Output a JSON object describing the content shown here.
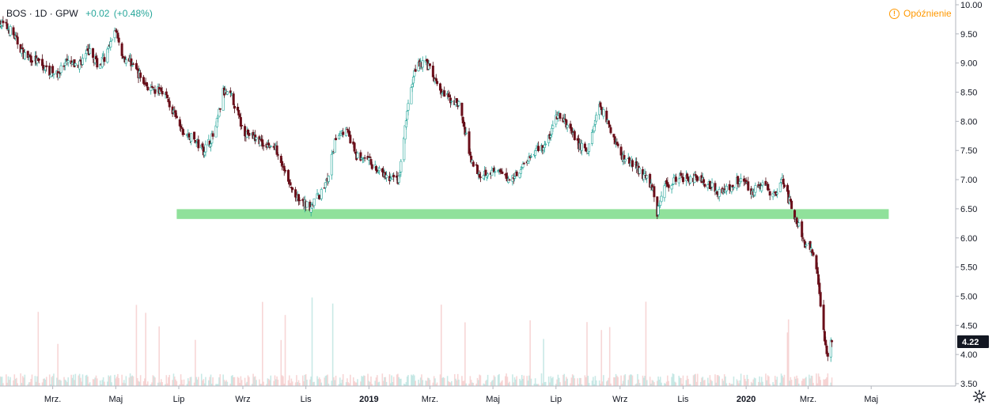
{
  "header": {
    "symbol": "BOS",
    "interval": "1D",
    "exchange": "GPW",
    "change": "+0.02",
    "change_pct": "(+0.48%)"
  },
  "status": {
    "label": "Opóźnienie",
    "icon": "warning-icon"
  },
  "last_price_label": "4.22",
  "colors": {
    "up": "#26a69a",
    "down": "#6b0f1a",
    "zone": "#7ddc8a",
    "last_price_bg": "#131722"
  },
  "icons": {
    "settings": "gear-icon"
  },
  "chart_data": {
    "type": "candlestick",
    "title": "",
    "xlabel": "",
    "ylabel": "",
    "ylim": [
      3.5,
      10.0
    ],
    "y_ticks": [
      "10.00",
      "9.50",
      "9.00",
      "8.50",
      "8.00",
      "7.50",
      "7.00",
      "6.50",
      "6.00",
      "5.50",
      "5.00",
      "4.50",
      "4.00",
      "3.50"
    ],
    "x_ticks": [
      "Mrz.",
      "Maj",
      "Lip",
      "Wrz",
      "Lis",
      "2019",
      "Mrz.",
      "Maj",
      "Lip",
      "Wrz",
      "Lis",
      "2020",
      "Mrz.",
      "Maj"
    ],
    "x_tick_dates": [
      "2018-03-01",
      "2018-05-01",
      "2018-07-01",
      "2018-09-01",
      "2018-11-01",
      "2019-01-01",
      "2019-03-01",
      "2019-05-01",
      "2019-07-01",
      "2019-09-01",
      "2019-11-01",
      "2020-01-01",
      "2020-03-01",
      "2020-05-01"
    ],
    "x_range": [
      "2018-01-09",
      "2020-06-15"
    ],
    "grid": false,
    "last_price": 4.22,
    "support_zone": {
      "low": 6.42,
      "high": 6.48,
      "from": "2018-06-29",
      "to": "2020-05-18"
    },
    "close_path": [
      [
        "2018-01-09",
        9.7
      ],
      [
        "2018-01-20",
        9.55
      ],
      [
        "2018-02-01",
        9.15
      ],
      [
        "2018-02-12",
        9.05
      ],
      [
        "2018-02-22",
        8.9
      ],
      [
        "2018-03-05",
        8.8
      ],
      [
        "2018-03-15",
        9.0
      ],
      [
        "2018-03-25",
        8.95
      ],
      [
        "2018-04-05",
        9.2
      ],
      [
        "2018-04-15",
        8.95
      ],
      [
        "2018-04-25",
        9.25
      ],
      [
        "2018-05-01",
        9.6
      ],
      [
        "2018-05-08",
        9.1
      ],
      [
        "2018-05-17",
        9.0
      ],
      [
        "2018-05-27",
        8.7
      ],
      [
        "2018-06-06",
        8.5
      ],
      [
        "2018-06-16",
        8.55
      ],
      [
        "2018-06-24",
        8.2
      ],
      [
        "2018-07-05",
        7.8
      ],
      [
        "2018-07-15",
        7.7
      ],
      [
        "2018-07-25",
        7.5
      ],
      [
        "2018-08-05",
        7.8
      ],
      [
        "2018-08-13",
        8.5
      ],
      [
        "2018-08-22",
        8.4
      ],
      [
        "2018-09-01",
        7.85
      ],
      [
        "2018-09-13",
        7.7
      ],
      [
        "2018-09-25",
        7.6
      ],
      [
        "2018-10-05",
        7.5
      ],
      [
        "2018-10-16",
        6.9
      ],
      [
        "2018-10-26",
        6.6
      ],
      [
        "2018-11-05",
        6.55
      ],
      [
        "2018-11-15",
        6.75
      ],
      [
        "2018-11-22",
        7.0
      ],
      [
        "2018-12-01",
        7.8
      ],
      [
        "2018-12-10",
        7.85
      ],
      [
        "2018-12-20",
        7.4
      ],
      [
        "2019-01-02",
        7.3
      ],
      [
        "2019-01-12",
        7.1
      ],
      [
        "2019-01-22",
        7.0
      ],
      [
        "2019-01-30",
        7.0
      ],
      [
        "2019-02-08",
        8.3
      ],
      [
        "2019-02-16",
        9.0
      ],
      [
        "2019-02-26",
        9.0
      ],
      [
        "2019-03-08",
        8.6
      ],
      [
        "2019-03-18",
        8.4
      ],
      [
        "2019-03-29",
        8.3
      ],
      [
        "2019-04-09",
        7.4
      ],
      [
        "2019-04-18",
        7.1
      ],
      [
        "2019-04-28",
        7.15
      ],
      [
        "2019-05-08",
        7.1
      ],
      [
        "2019-05-18",
        7.0
      ],
      [
        "2019-05-28",
        7.2
      ],
      [
        "2019-06-10",
        7.5
      ],
      [
        "2019-06-22",
        7.6
      ],
      [
        "2019-07-02",
        8.1
      ],
      [
        "2019-07-12",
        7.95
      ],
      [
        "2019-07-22",
        7.6
      ],
      [
        "2019-08-01",
        7.5
      ],
      [
        "2019-08-12",
        8.3
      ],
      [
        "2019-08-22",
        7.9
      ],
      [
        "2019-09-02",
        7.4
      ],
      [
        "2019-09-12",
        7.3
      ],
      [
        "2019-09-22",
        7.1
      ],
      [
        "2019-10-02",
        6.9
      ],
      [
        "2019-10-07",
        6.45
      ],
      [
        "2019-10-14",
        6.9
      ],
      [
        "2019-10-24",
        7.0
      ],
      [
        "2019-11-04",
        7.05
      ],
      [
        "2019-11-14",
        7.0
      ],
      [
        "2019-11-24",
        6.95
      ],
      [
        "2019-12-05",
        6.8
      ],
      [
        "2019-12-16",
        6.85
      ],
      [
        "2019-12-27",
        7.05
      ],
      [
        "2020-01-07",
        6.8
      ],
      [
        "2020-01-18",
        6.9
      ],
      [
        "2020-01-28",
        6.75
      ],
      [
        "2020-02-06",
        7.0
      ],
      [
        "2020-02-13",
        6.55
      ],
      [
        "2020-02-20",
        6.25
      ],
      [
        "2020-02-27",
        5.85
      ],
      [
        "2020-03-04",
        5.85
      ],
      [
        "2020-03-09",
        5.5
      ],
      [
        "2020-03-13",
        4.9
      ],
      [
        "2020-03-17",
        4.2
      ],
      [
        "2020-03-19",
        4.0
      ],
      [
        "2020-03-24",
        4.22
      ]
    ]
  }
}
